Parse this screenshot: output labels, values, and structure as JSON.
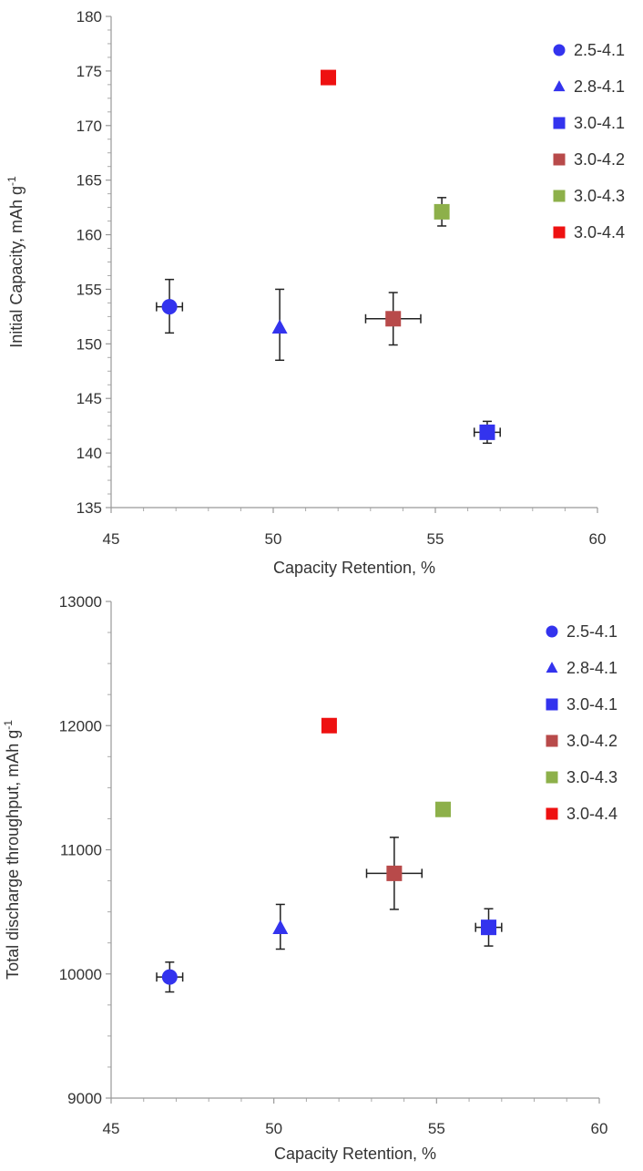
{
  "chart_data": [
    {
      "type": "scatter",
      "xlabel": "Capacity Retention, %",
      "ylabel": "Initial Capacity, mAh g",
      "ylabel_superscript": "-1",
      "xlim": [
        45,
        60
      ],
      "ylim": [
        135,
        180
      ],
      "xticks": [
        "45",
        "50",
        "55",
        "60"
      ],
      "yticks": [
        "135",
        "140",
        "145",
        "150",
        "155",
        "160",
        "165",
        "170",
        "175",
        "180"
      ],
      "legend_position": "top-right",
      "series": [
        {
          "name": "2.5-4.1",
          "marker": "circle",
          "color": "#3333ee",
          "x": 46.8,
          "y": 153.4,
          "xerr": 0.4,
          "yerr": [
            2.4,
            2.5
          ]
        },
        {
          "name": "2.8-4.1",
          "marker": "triangle",
          "color": "#3333ee",
          "x": 50.2,
          "y": 151.5,
          "xerr": 0,
          "yerr": [
            3.0,
            3.5
          ]
        },
        {
          "name": "3.0-4.1",
          "marker": "square",
          "color": "#3333ee",
          "x": 56.6,
          "y": 141.9,
          "xerr": 0.4,
          "yerr": [
            1.0,
            1.0
          ]
        },
        {
          "name": "3.0-4.2",
          "marker": "square",
          "color": "#b84a4a",
          "x": 53.7,
          "y": 152.3,
          "xerr": 0.85,
          "yerr": [
            2.4,
            2.4
          ]
        },
        {
          "name": "3.0-4.3",
          "marker": "square",
          "color": "#8db04a",
          "x": 55.2,
          "y": 162.1,
          "xerr": 0.15,
          "yerr": [
            1.3,
            1.3
          ]
        },
        {
          "name": "3.0-4.4",
          "marker": "square",
          "color": "#ee1111",
          "x": 51.7,
          "y": 174.4,
          "xerr": 0.2,
          "yerr": [
            0.6,
            0.6
          ]
        }
      ]
    },
    {
      "type": "scatter",
      "xlabel": "Capacity Retention, %",
      "ylabel": "Total discharge throughput, mAh g",
      "ylabel_superscript": "-1",
      "xlim": [
        45,
        60
      ],
      "ylim": [
        9000,
        13000
      ],
      "xticks": [
        "45",
        "50",
        "55",
        "60"
      ],
      "yticks": [
        "9000",
        "10000",
        "11000",
        "12000",
        "13000"
      ],
      "legend_position": "top-right",
      "series": [
        {
          "name": "2.5-4.1",
          "marker": "circle",
          "color": "#3333ee",
          "x": 46.8,
          "y": 9975,
          "xerr": 0.4,
          "yerr": [
            120,
            120
          ]
        },
        {
          "name": "2.8-4.1",
          "marker": "triangle",
          "color": "#3333ee",
          "x": 50.2,
          "y": 10370,
          "xerr": 0,
          "yerr": [
            170,
            190
          ]
        },
        {
          "name": "3.0-4.1",
          "marker": "square",
          "color": "#3333ee",
          "x": 56.6,
          "y": 10375,
          "xerr": 0.4,
          "yerr": [
            150,
            150
          ]
        },
        {
          "name": "3.0-4.2",
          "marker": "square",
          "color": "#b84a4a",
          "x": 53.7,
          "y": 10810,
          "xerr": 0.85,
          "yerr": [
            290,
            290
          ]
        },
        {
          "name": "3.0-4.3",
          "marker": "square",
          "color": "#8db04a",
          "x": 55.2,
          "y": 11325,
          "xerr": 0.15,
          "yerr": [
            25,
            25
          ]
        },
        {
          "name": "3.0-4.4",
          "marker": "square",
          "color": "#ee1111",
          "x": 51.7,
          "y": 12000,
          "xerr": 0,
          "yerr": [
            0,
            0
          ]
        }
      ]
    }
  ]
}
